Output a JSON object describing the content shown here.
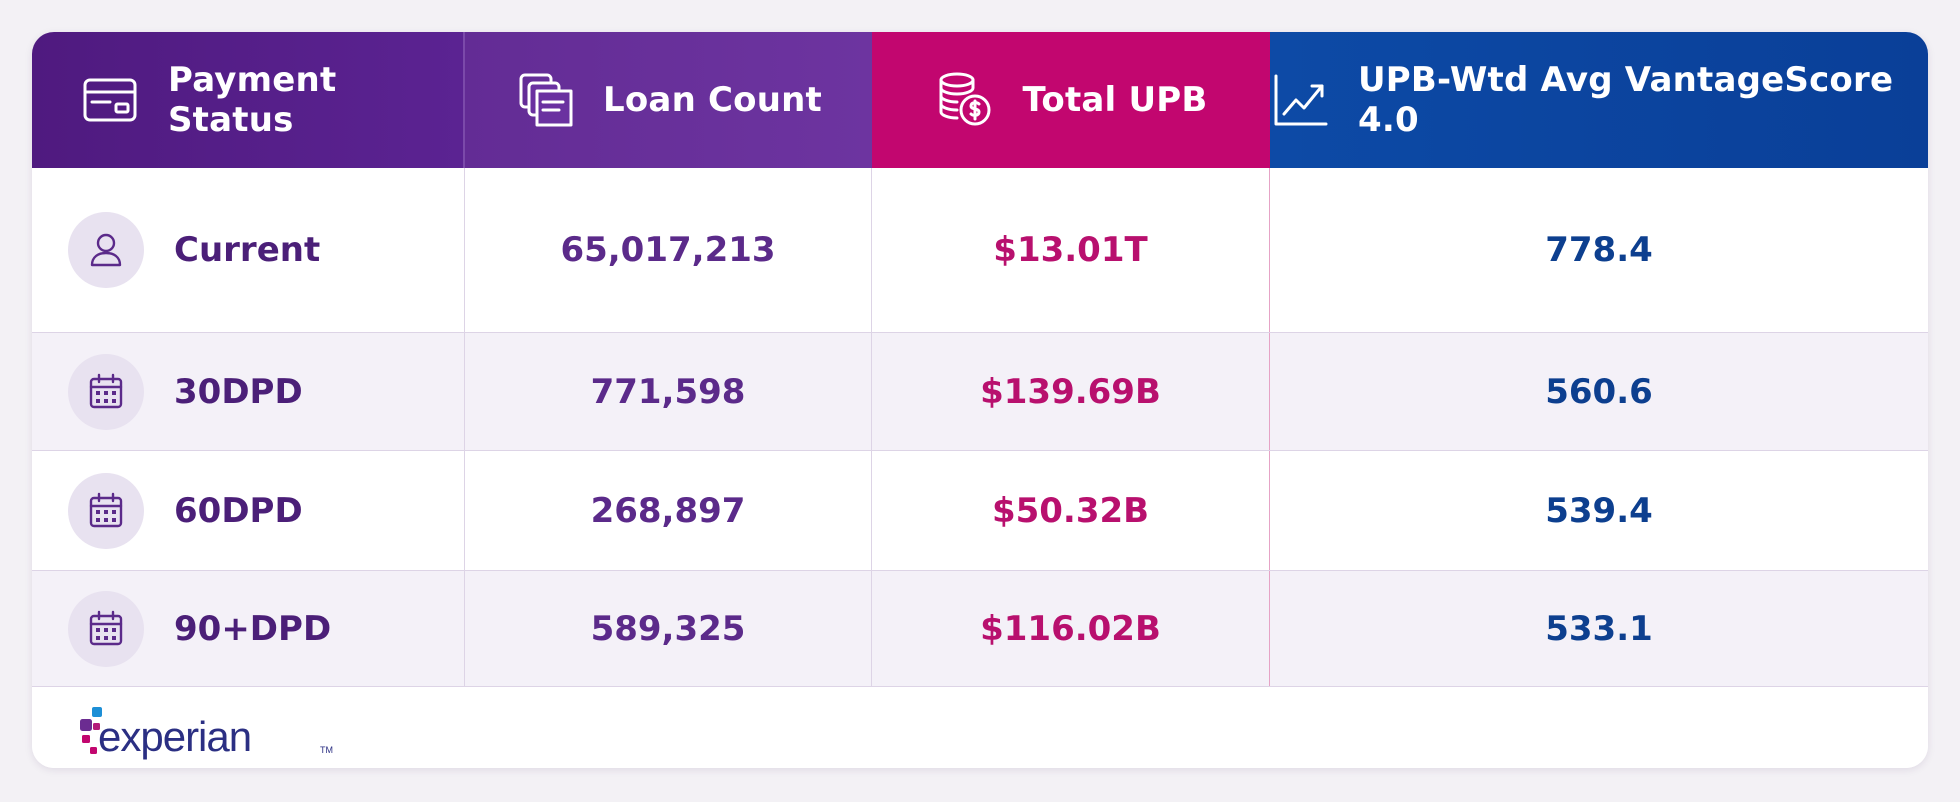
{
  "headers": {
    "payment_status": "Payment Status",
    "loan_count": "Loan Count",
    "total_upb": "Total UPB",
    "vantage": "UPB-Wtd Avg VantageScore 4.0"
  },
  "header_icons": [
    "card-icon",
    "documents-icon",
    "coins-dollar-icon",
    "line-chart-icon"
  ],
  "rows": [
    {
      "status": "Current",
      "icon": "person-icon",
      "loan_count": "65,017,213",
      "total_upb": "$13.01T",
      "vantage": "778.4"
    },
    {
      "status": "30DPD",
      "icon": "calendar-icon",
      "loan_count": "771,598",
      "total_upb": "$139.69B",
      "vantage": "560.6"
    },
    {
      "status": "60DPD",
      "icon": "calendar-icon",
      "loan_count": "268,897",
      "total_upb": "$50.32B",
      "vantage": "539.4"
    },
    {
      "status": "90+DPD",
      "icon": "calendar-icon",
      "loan_count": "589,325",
      "total_upb": "$116.02B",
      "vantage": "533.1"
    }
  ],
  "logo": {
    "text": "experian",
    "tm": "TM"
  },
  "colors": {
    "purple_dark": "#4f1a7f",
    "purple": "#632c95",
    "magenta": "#c2066f",
    "blue": "#0d4aa6"
  }
}
